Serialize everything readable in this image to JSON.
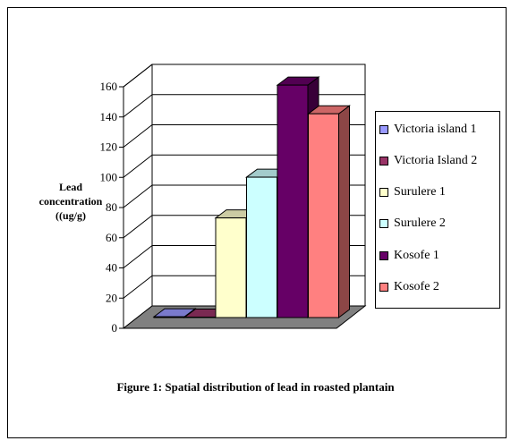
{
  "chart_data": {
    "type": "bar",
    "style": "3d-column",
    "ylabel_lines": [
      "Lead",
      "concentration",
      "((ug/g)"
    ],
    "caption": "Figure 1: Spatial distribution of lead in roasted plantain",
    "ylim": [
      0,
      160
    ],
    "ytick_step": 20,
    "yticks": [
      "0",
      "20",
      "40",
      "60",
      "80",
      "100",
      "120",
      "140",
      "160"
    ],
    "grid": true,
    "legend_position": "right",
    "series": [
      {
        "name": "Victoria island 1",
        "value": 0.5,
        "color": "#9999ff"
      },
      {
        "name": "Victoria Island 2",
        "value": 0.3,
        "color": "#993366"
      },
      {
        "name": "Surulere 1",
        "value": 66,
        "color": "#ffffcc"
      },
      {
        "name": "Surulere 2",
        "value": 93,
        "color": "#ccffff"
      },
      {
        "name": "Kosofe 1",
        "value": 154,
        "color": "#660066"
      },
      {
        "name": "Kosofe 2",
        "value": 135,
        "color": "#ff8080"
      }
    ]
  }
}
